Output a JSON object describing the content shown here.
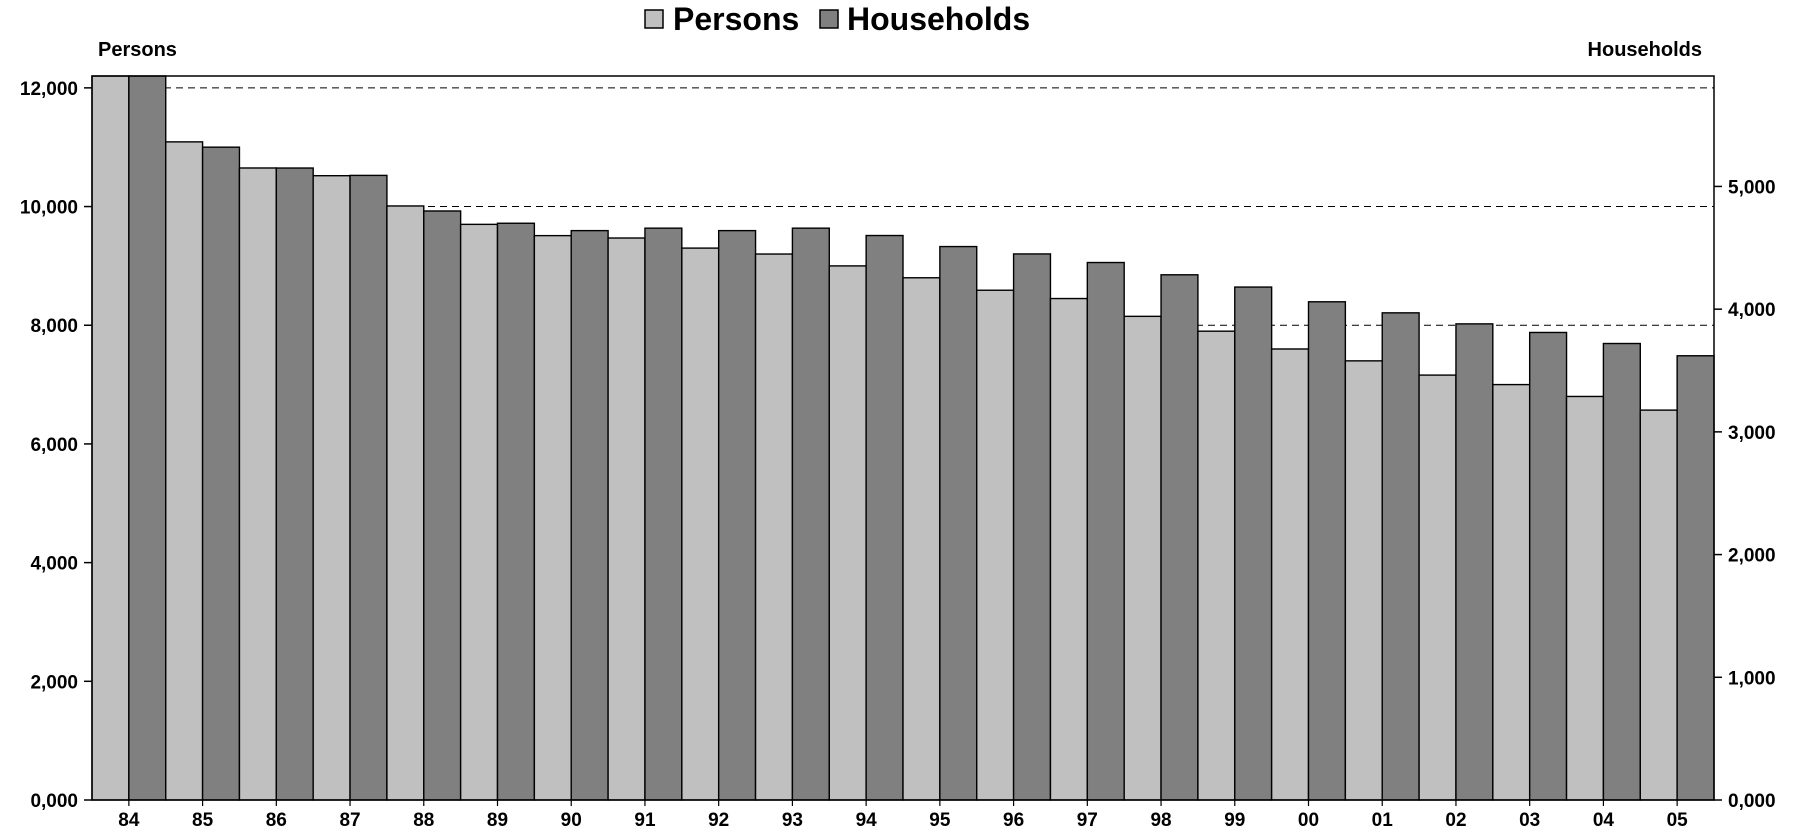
{
  "chart_data": {
    "type": "bar",
    "categories": [
      "84",
      "85",
      "86",
      "87",
      "88",
      "89",
      "90",
      "91",
      "92",
      "93",
      "94",
      "95",
      "96",
      "97",
      "98",
      "99",
      "00",
      "01",
      "02",
      "03",
      "04",
      "05"
    ],
    "series": [
      {
        "name": "Persons",
        "axis": "left",
        "color": "#c0c0c0",
        "values": [
          12250,
          11090,
          10650,
          10520,
          10010,
          9700,
          9510,
          9470,
          9300,
          9200,
          9000,
          8800,
          8590,
          8450,
          8150,
          7900,
          7600,
          7400,
          7160,
          7000,
          6800,
          6570
        ]
      },
      {
        "name": "Households",
        "axis": "right",
        "color": "#808080",
        "values": [
          5940,
          5320,
          5150,
          5090,
          4800,
          4700,
          4640,
          4660,
          4640,
          4660,
          4600,
          4510,
          4450,
          4380,
          4280,
          4180,
          4060,
          3970,
          3880,
          3810,
          3720,
          3620
        ]
      }
    ],
    "legend": {
      "position": "top-center",
      "items": [
        "Persons",
        "Households"
      ]
    },
    "y_left": {
      "title": "Persons",
      "ylim": [
        0,
        12200
      ],
      "ticks": [
        0,
        2000,
        4000,
        6000,
        8000,
        10000,
        12000
      ],
      "tick_labels": [
        "0,000",
        "2,000",
        "4,000",
        "6,000",
        "8,000",
        "10,000",
        "12,000"
      ]
    },
    "y_right": {
      "title": "Households",
      "ylim": [
        0,
        5900
      ],
      "ticks": [
        0,
        1000,
        2000,
        3000,
        4000,
        5000
      ],
      "tick_labels": [
        "0,000",
        "1,000",
        "2,000",
        "3,000",
        "4,000",
        "5,000"
      ]
    },
    "gridlines": {
      "style": "dashed",
      "at_left_values": [
        8000,
        10000,
        12000
      ]
    }
  }
}
